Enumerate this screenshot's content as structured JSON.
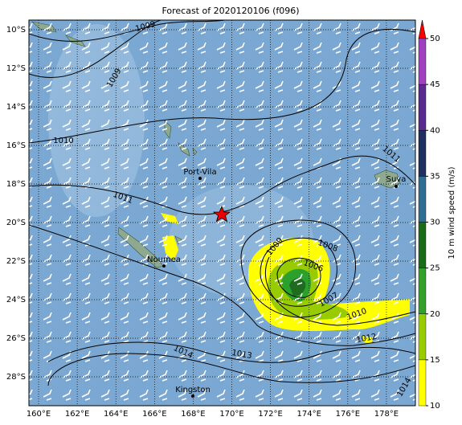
{
  "title": "Forecast of 2020120106 (f096)",
  "lon_ticks": [
    {
      "value": 160,
      "label": "160°E"
    },
    {
      "value": 162,
      "label": "162°E"
    },
    {
      "value": 164,
      "label": "164°E"
    },
    {
      "value": 166,
      "label": "166°E"
    },
    {
      "value": 168,
      "label": "168°E"
    },
    {
      "value": 170,
      "label": "170°E"
    },
    {
      "value": 172,
      "label": "172°E"
    },
    {
      "value": 174,
      "label": "174°E"
    },
    {
      "value": 176,
      "label": "176°E"
    },
    {
      "value": 178,
      "label": "178°E"
    }
  ],
  "lat_ticks": [
    {
      "value": -10,
      "label": "10°S"
    },
    {
      "value": -12,
      "label": "12°S"
    },
    {
      "value": -14,
      "label": "14°S"
    },
    {
      "value": -16,
      "label": "16°S"
    },
    {
      "value": -18,
      "label": "18°S"
    },
    {
      "value": -20,
      "label": "20°S"
    },
    {
      "value": -22,
      "label": "22°S"
    },
    {
      "value": -24,
      "label": "24°S"
    },
    {
      "value": -26,
      "label": "26°S"
    },
    {
      "value": -28,
      "label": "28°S"
    }
  ],
  "places": [
    "Port-Vila",
    "Noumea",
    "Kingston",
    "Suva"
  ],
  "contour_labels": [
    "1009",
    "1009",
    "1010",
    "1011",
    "1011",
    "1009",
    "1008",
    "1006",
    "1007",
    "1010",
    "1012",
    "1014",
    "1013",
    "1014"
  ],
  "colorbar": {
    "label": "10 m wind speed (m/s)",
    "ticks": [
      10,
      15,
      20,
      25,
      30,
      35,
      40,
      45,
      50
    ]
  }
}
